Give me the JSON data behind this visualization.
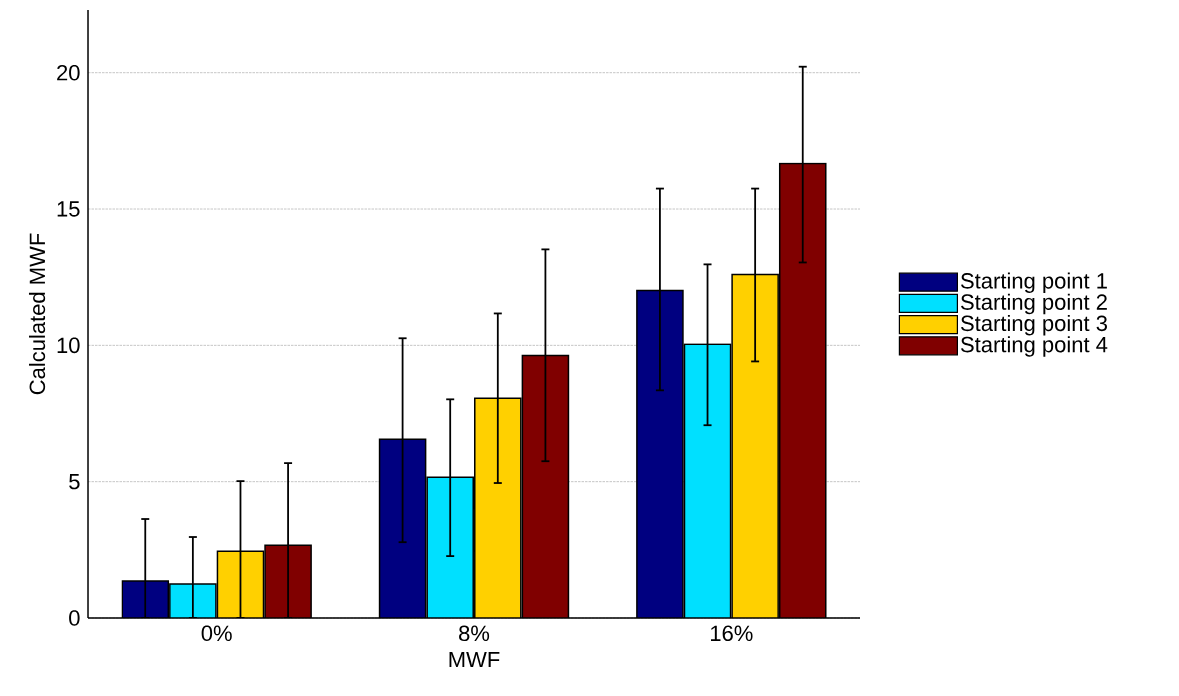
{
  "chart_data": {
    "type": "bar",
    "xlabel": "MWF",
    "ylabel": "Calculated MWF",
    "categories": [
      "0%",
      "8%",
      "16%"
    ],
    "series": [
      {
        "name": "Starting point 1",
        "color": "#000080",
        "values": [
          1.36,
          6.56,
          12.01
        ],
        "errors": [
          [
            0,
            3.63
          ],
          [
            2.78,
            10.26
          ],
          [
            8.35,
            15.75
          ]
        ]
      },
      {
        "name": "Starting point 2",
        "color": "#00e0ff",
        "values": [
          1.25,
          5.16,
          10.04
        ],
        "errors": [
          [
            0,
            2.97
          ],
          [
            2.27,
            8.02
          ],
          [
            7.07,
            12.97
          ]
        ]
      },
      {
        "name": "Starting point 3",
        "color": "#ffd000",
        "values": [
          2.45,
          8.06,
          12.6
        ],
        "errors": [
          [
            0,
            5.02
          ],
          [
            4.95,
            11.17
          ],
          [
            9.41,
            15.75
          ]
        ]
      },
      {
        "name": "Starting point 4",
        "color": "#800000",
        "values": [
          2.67,
          9.63,
          16.67
        ],
        "errors": [
          [
            0,
            5.68
          ],
          [
            5.75,
            13.52
          ],
          [
            13.04,
            20.22
          ]
        ]
      }
    ],
    "ylim": [
      0,
      22.3
    ],
    "yticks": [
      0,
      5,
      10,
      15,
      20
    ],
    "grid": "y",
    "legend": "right"
  }
}
